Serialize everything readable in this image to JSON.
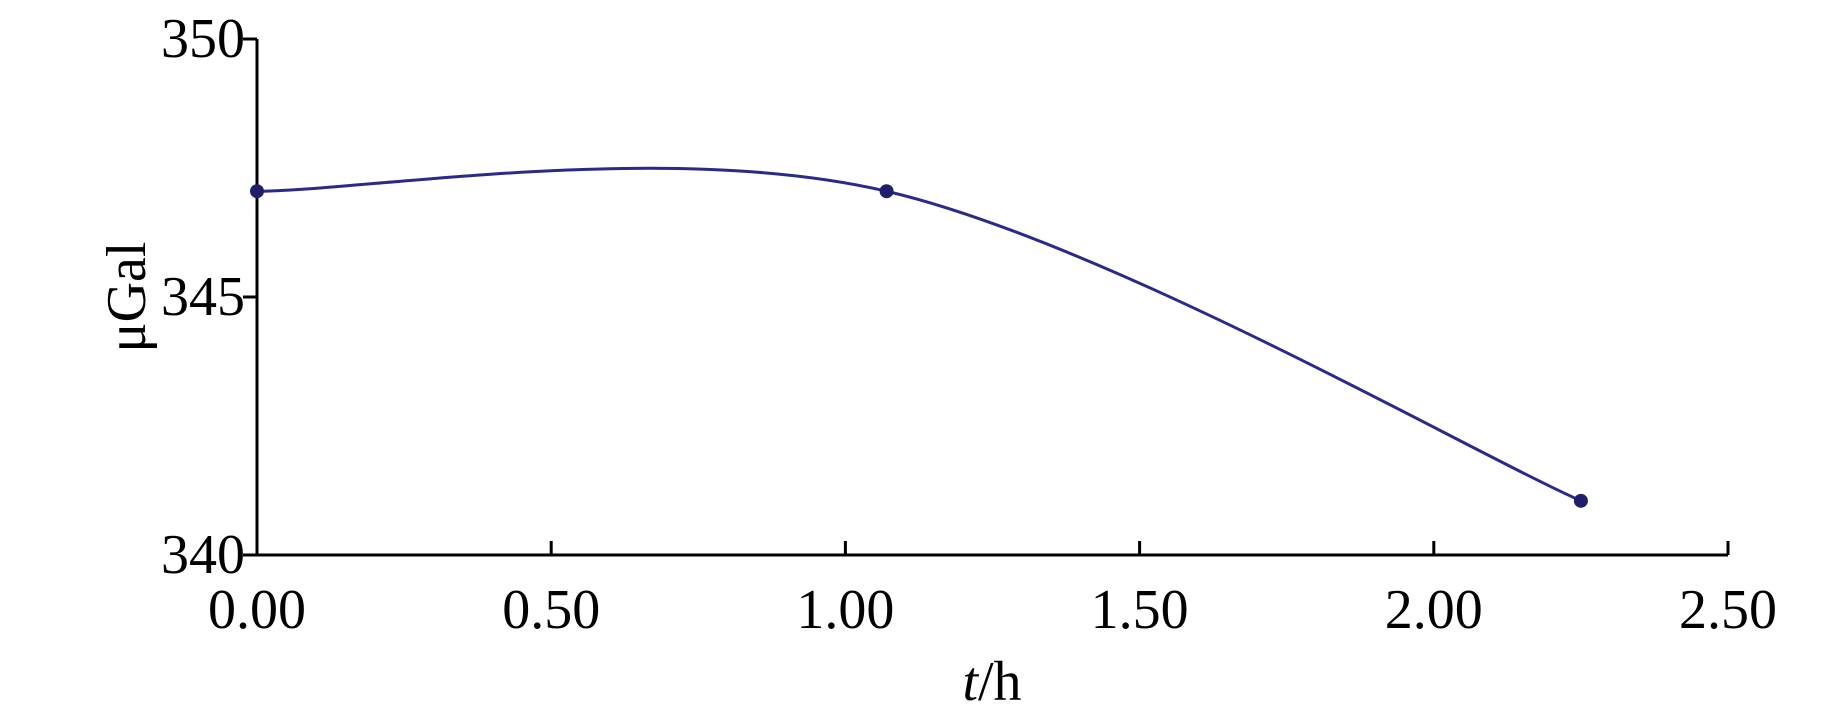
{
  "chart_data": {
    "type": "line",
    "x_label_italic": "t",
    "x_label_unit": "/h",
    "ylabel": "μGal",
    "xlim": [
      0,
      2.5
    ],
    "ylim": [
      340,
      350
    ],
    "xticks": [
      0,
      0.5,
      1,
      1.5,
      2,
      2.5
    ],
    "yticks": [
      340,
      345,
      350
    ],
    "xtick_labels": [
      "0.00",
      "0.50",
      "1.00",
      "1.50",
      "2.00",
      "2.50"
    ],
    "ytick_labels": [
      "340",
      "345",
      "350"
    ],
    "grid": false,
    "series": [
      {
        "color": "#2a2a8a",
        "x": [
          0.0,
          1.07,
          2.25
        ],
        "values": [
          347.05,
          347.05,
          341.05
        ]
      }
    ]
  }
}
